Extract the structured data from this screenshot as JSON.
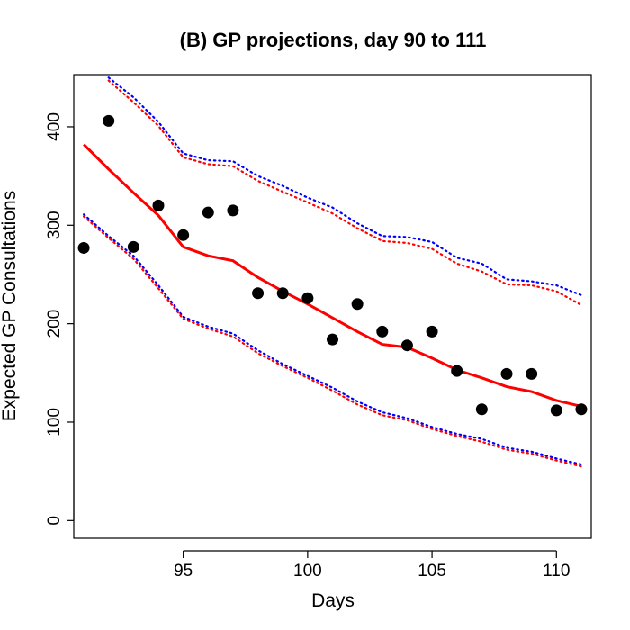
{
  "chart_data": {
    "type": "line",
    "title": "(B) GP projections, day 90 to 111",
    "xlabel": "Days",
    "ylabel": "Expected GP Consultations",
    "xlim": [
      90.6,
      111.4
    ],
    "ylim": [
      -18,
      453
    ],
    "x_ticks": [
      95,
      100,
      105,
      110
    ],
    "y_ticks": [
      0,
      100,
      200,
      300,
      400
    ],
    "grid": false,
    "legend": "none",
    "colors": {
      "fit": "#ff0000",
      "upper_blue": "#0000ff",
      "upper_red": "#ff0000",
      "lower_blue": "#0000ff",
      "lower_red": "#ff0000",
      "points": "#000000"
    },
    "series": [
      {
        "style": "points",
        "x": [
          91,
          92,
          93,
          94,
          95,
          96,
          97,
          98,
          99,
          100,
          101,
          102,
          103,
          104,
          105,
          106,
          107,
          108,
          109,
          110,
          111
        ],
        "values": [
          277,
          406,
          278,
          320,
          290,
          313,
          315,
          231,
          231,
          226,
          184,
          220,
          192,
          178,
          192,
          152,
          113,
          149,
          149,
          112,
          113
        ]
      },
      {
        "style": "solid",
        "x": [
          91,
          92,
          93,
          94,
          95,
          96,
          97,
          98,
          99,
          100,
          101,
          102,
          103,
          104,
          105,
          106,
          107,
          108,
          109,
          110,
          111
        ],
        "values": [
          382,
          357,
          333,
          310,
          278,
          269,
          264,
          247,
          233,
          220,
          206,
          192,
          179,
          176,
          165,
          153,
          145,
          136,
          131,
          122,
          116
        ]
      },
      {
        "style": "dotted",
        "x": [
          92,
          93,
          94,
          95,
          96,
          97,
          98,
          99,
          100,
          101,
          102,
          103,
          104,
          105,
          106,
          107,
          108,
          109,
          110,
          111
        ],
        "values": [
          450,
          430,
          405,
          373,
          366,
          365,
          350,
          340,
          328,
          318,
          302,
          289,
          288,
          283,
          267,
          261,
          245,
          243,
          239,
          229
        ]
      },
      {
        "style": "dotted",
        "x": [
          92,
          93,
          94,
          95,
          96,
          97,
          98,
          99,
          100,
          101,
          102,
          103,
          104,
          105,
          106,
          107,
          108,
          109,
          110,
          111
        ],
        "values": [
          447,
          425,
          401,
          369,
          362,
          360,
          345,
          334,
          323,
          312,
          297,
          284,
          282,
          276,
          261,
          253,
          240,
          239,
          233,
          219
        ]
      },
      {
        "style": "dotted",
        "x": [
          91,
          92,
          93,
          94,
          95,
          96,
          97,
          98,
          99,
          100,
          101,
          102,
          103,
          104,
          105,
          106,
          107,
          108,
          109,
          110,
          111
        ],
        "values": [
          311,
          289,
          269,
          239,
          207,
          197,
          190,
          173,
          159,
          147,
          135,
          121,
          110,
          104,
          95,
          88,
          83,
          74,
          70,
          63,
          57
        ]
      },
      {
        "style": "dotted",
        "x": [
          91,
          92,
          93,
          94,
          95,
          96,
          97,
          98,
          99,
          100,
          101,
          102,
          103,
          104,
          105,
          106,
          107,
          108,
          109,
          110,
          111
        ],
        "values": [
          309,
          287,
          266,
          236,
          205,
          195,
          187,
          170,
          157,
          145,
          132,
          118,
          107,
          102,
          93,
          86,
          80,
          72,
          68,
          61,
          55
        ]
      }
    ]
  }
}
